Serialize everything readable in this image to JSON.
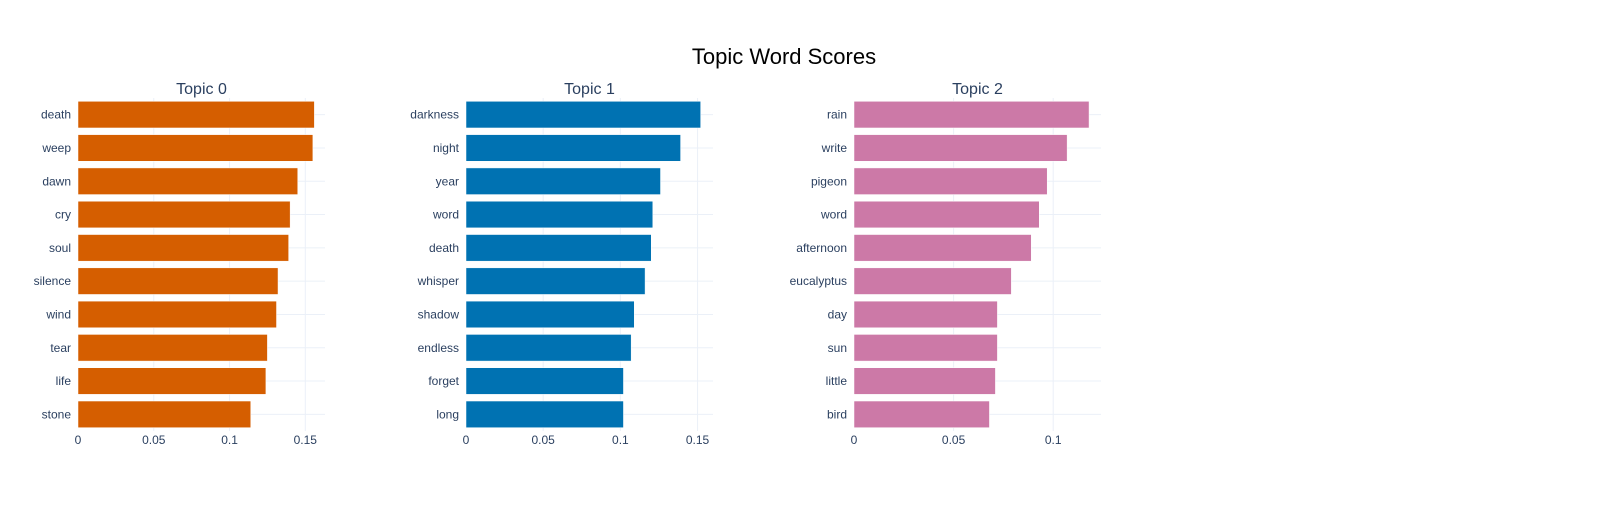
{
  "chart_data": [
    {
      "type": "bar",
      "orientation": "horizontal",
      "title": "Topic 0",
      "color": "#D55E00",
      "categories": [
        "death",
        "weep",
        "dawn",
        "cry",
        "soul",
        "silence",
        "wind",
        "tear",
        "life",
        "stone"
      ],
      "values": [
        0.156,
        0.155,
        0.145,
        0.14,
        0.139,
        0.132,
        0.131,
        0.125,
        0.124,
        0.114
      ],
      "xlim": [
        0,
        0.163
      ],
      "xticks": [
        0,
        0.05,
        0.1,
        0.15
      ],
      "xtick_labels": [
        "0",
        "0.05",
        "0.1",
        "0.15"
      ],
      "grid": true
    },
    {
      "type": "bar",
      "orientation": "horizontal",
      "title": "Topic 1",
      "color": "#0072B2",
      "categories": [
        "darkness",
        "night",
        "year",
        "word",
        "death",
        "whisper",
        "shadow",
        "endless",
        "forget",
        "long"
      ],
      "values": [
        0.152,
        0.139,
        0.126,
        0.121,
        0.12,
        0.116,
        0.109,
        0.107,
        0.102,
        0.102
      ],
      "xlim": [
        0,
        0.16
      ],
      "xticks": [
        0,
        0.05,
        0.1,
        0.15
      ],
      "xtick_labels": [
        "0",
        "0.05",
        "0.1",
        "0.15"
      ],
      "grid": true
    },
    {
      "type": "bar",
      "orientation": "horizontal",
      "title": "Topic 2",
      "color": "#CC79A7",
      "categories": [
        "rain",
        "write",
        "pigeon",
        "word",
        "afternoon",
        "eucalyptus",
        "day",
        "sun",
        "little",
        "bird"
      ],
      "values": [
        0.118,
        0.107,
        0.097,
        0.093,
        0.089,
        0.079,
        0.072,
        0.072,
        0.071,
        0.068
      ],
      "xlim": [
        0,
        0.124
      ],
      "xticks": [
        0,
        0.05,
        0.1
      ],
      "xtick_labels": [
        "0",
        "0.05",
        "0.1"
      ],
      "grid": true
    }
  ],
  "figure": {
    "title": "Topic Word Scores"
  }
}
